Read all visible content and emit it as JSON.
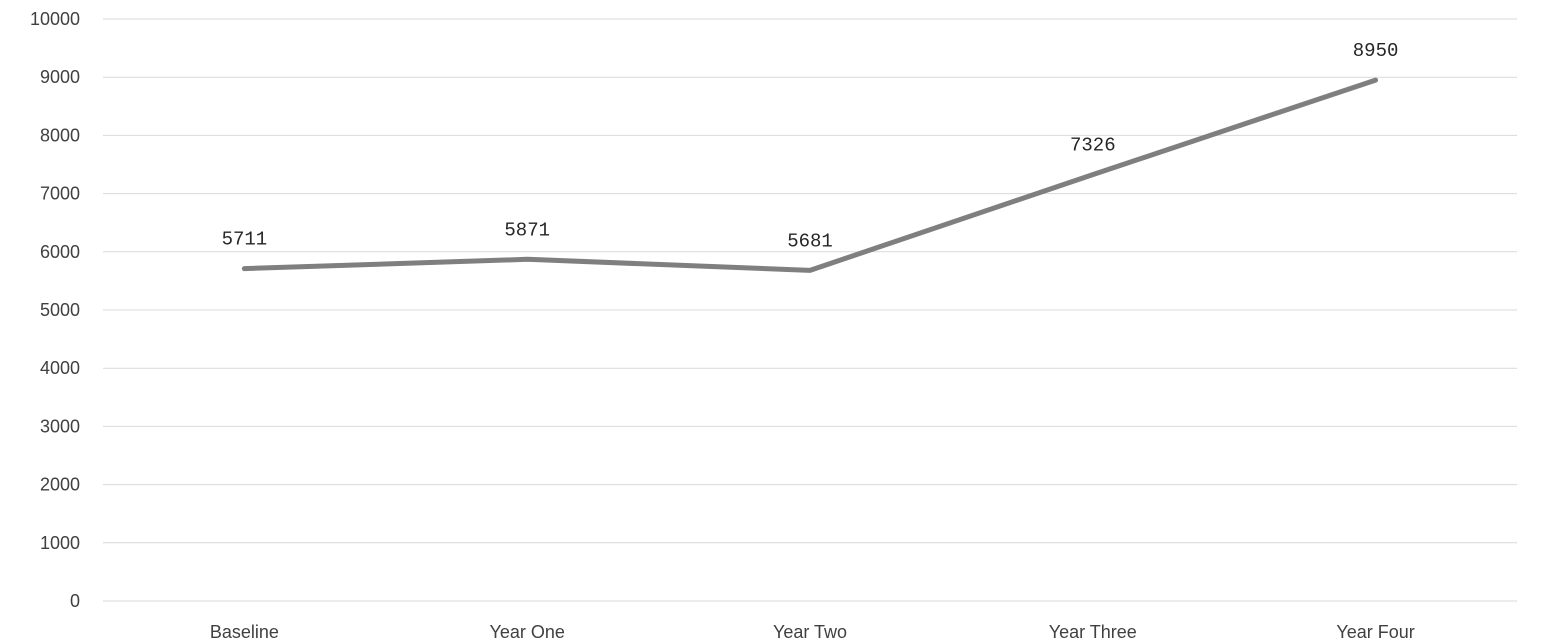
{
  "chart_data": {
    "type": "line",
    "title": "",
    "xlabel": "",
    "ylabel": "",
    "categories": [
      "Baseline",
      "Year One",
      "Year Two",
      "Year Three",
      "Year Four"
    ],
    "series": [
      {
        "values": [
          5711,
          5871,
          5681,
          7326,
          8950
        ],
        "color": "#7f7f7f"
      }
    ],
    "ylim": [
      0,
      10000
    ],
    "yticks": [
      0,
      1000,
      2000,
      3000,
      4000,
      5000,
      6000,
      7000,
      8000,
      9000,
      10000
    ],
    "grid": "horizontal",
    "legend": "none",
    "data_labels": "above"
  }
}
